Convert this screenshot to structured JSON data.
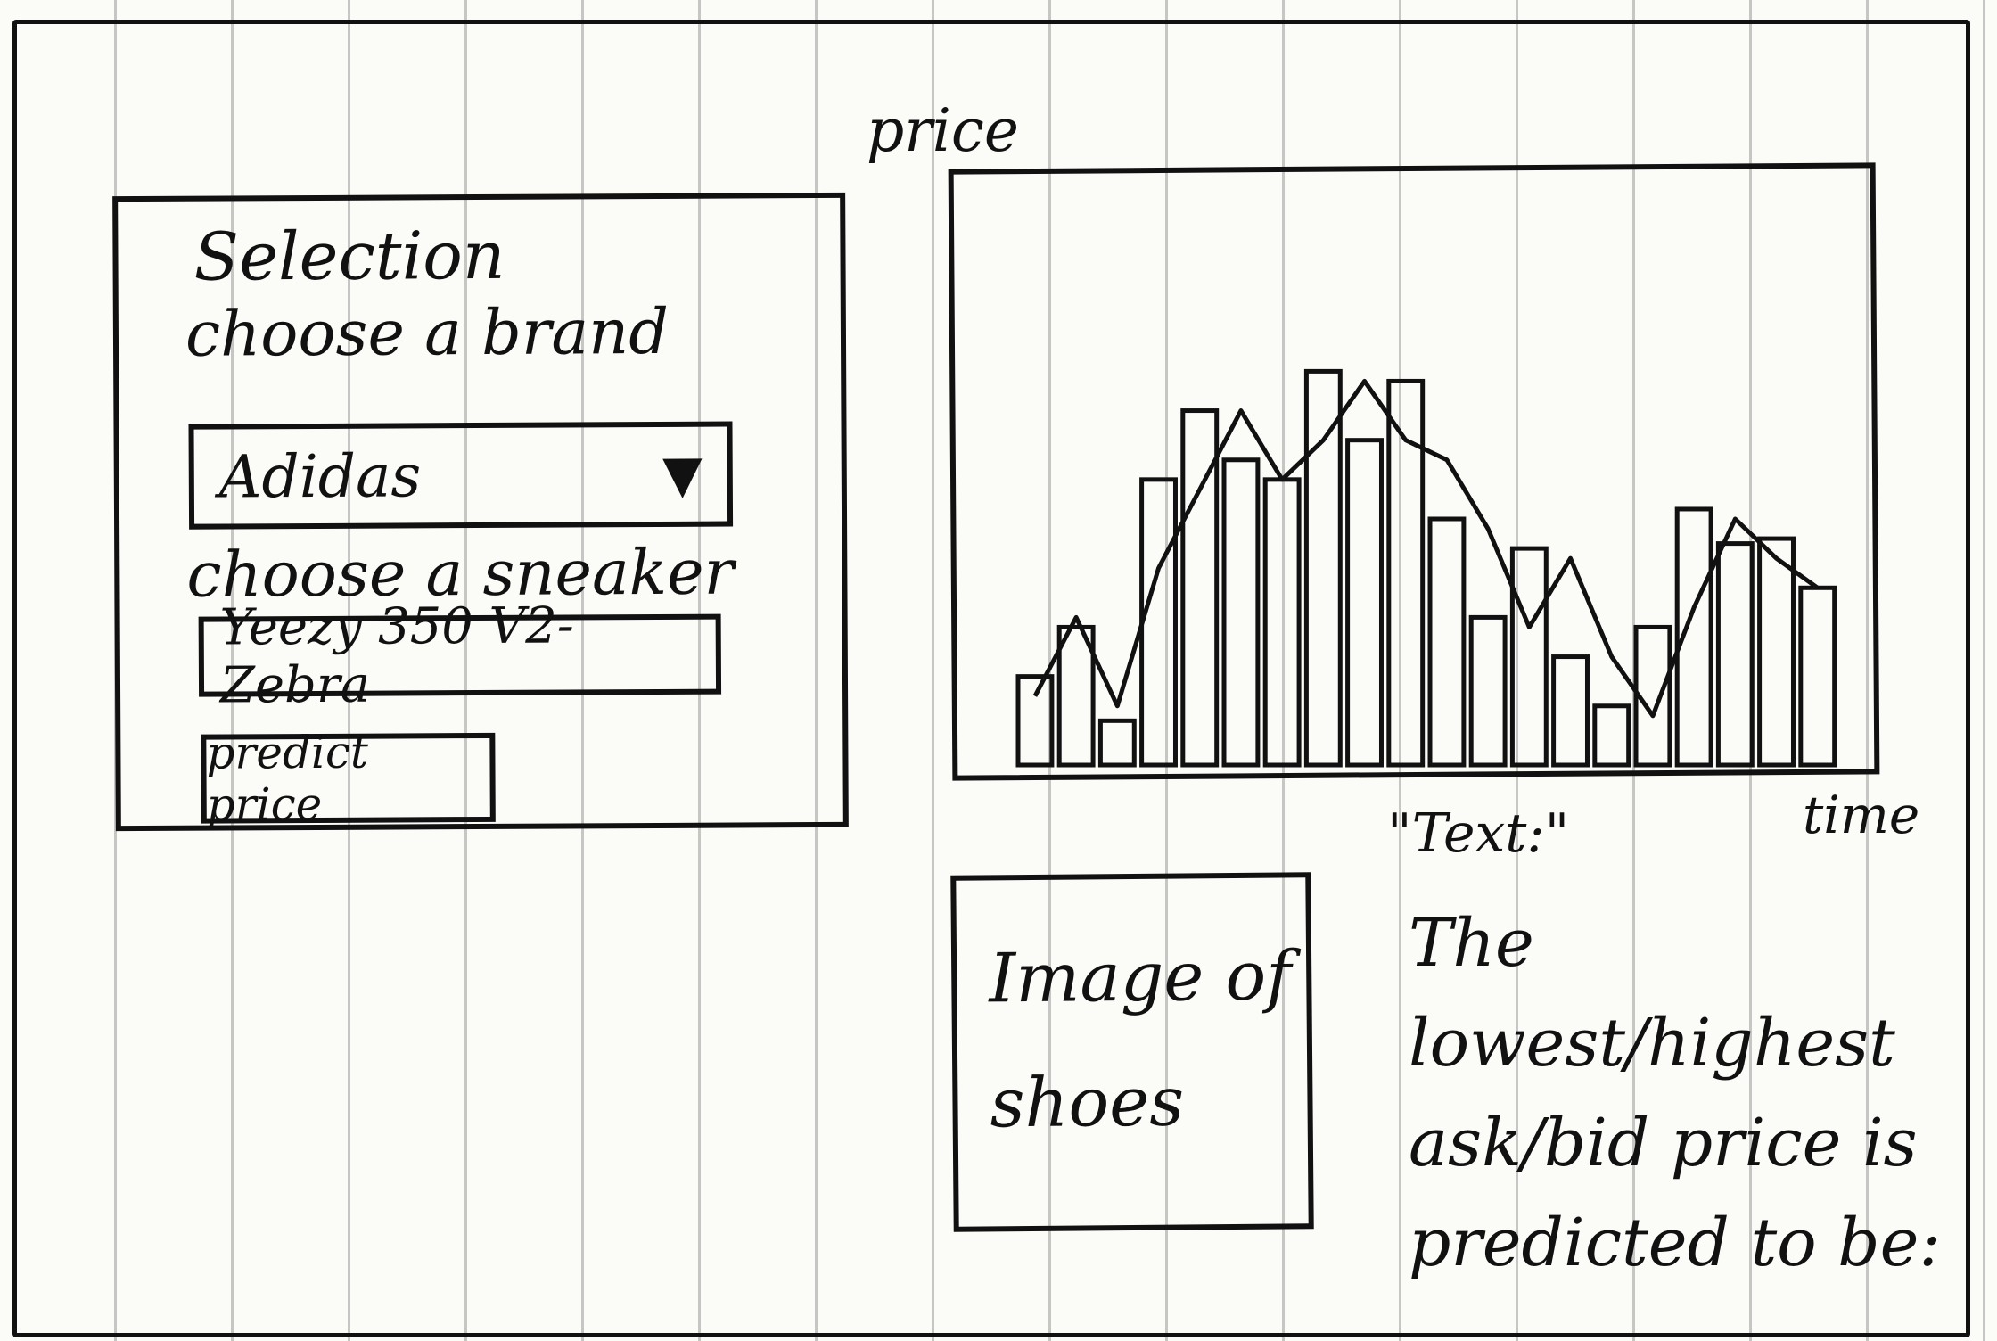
{
  "selection": {
    "title": "Selection",
    "brand_label": "choose a brand",
    "brand_value": "Adidas",
    "brand_arrow": "▼",
    "sneaker_label": "choose a sneaker",
    "sneaker_value": "Yeezy 350 V2-Zebra",
    "predict_button": "predict price"
  },
  "chart_data": {
    "type": "bar",
    "ylabel": "price",
    "xlabel": "time",
    "values": [
      18,
      28,
      9,
      58,
      72,
      62,
      58,
      80,
      66,
      78,
      50,
      30,
      44,
      22,
      12,
      28,
      52,
      45,
      46,
      36
    ],
    "line": [
      14,
      30,
      12,
      40,
      56,
      72,
      58,
      66,
      78,
      66,
      62,
      48,
      28,
      42,
      22,
      10,
      32,
      50,
      42,
      36
    ],
    "ylim": [
      0,
      100
    ],
    "grid": false
  },
  "image_placeholder": "Image of shoes",
  "output": {
    "quote_label": "\"Text:\"",
    "prediction_text": "The lowest/highest ask/bid price is predicted to be:"
  }
}
